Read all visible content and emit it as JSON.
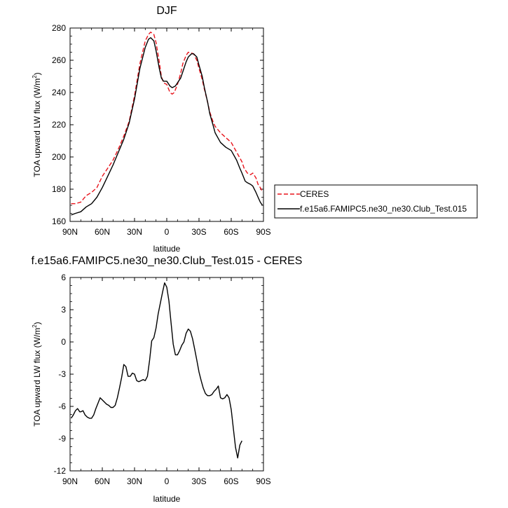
{
  "chart_data": [
    {
      "type": "line",
      "title": "DJF",
      "xlabel": "latitude",
      "ylabel": "TOA upward LW flux (W/m",
      "ylabel_sup": "2",
      "ylabel_tail": ")",
      "xlim": [
        90,
        -90
      ],
      "ylim": [
        160,
        280
      ],
      "x_ticks": [
        90,
        60,
        30,
        0,
        -30,
        -60,
        -90
      ],
      "x_tick_labels": [
        "90N",
        "60N",
        "30N",
        "0",
        "30S",
        "60S",
        "90S"
      ],
      "y_ticks": [
        160,
        180,
        200,
        220,
        240,
        260,
        280
      ],
      "y_tick_labels": [
        "160",
        "180",
        "200",
        "220",
        "240",
        "260",
        "280"
      ],
      "legend_position": "right",
      "series": [
        {
          "name": "CERES",
          "color": "#e8141c",
          "dash": "dashed",
          "x": [
            89,
            85,
            80,
            75,
            70,
            65,
            60,
            55,
            50,
            45,
            40,
            35,
            30,
            25,
            20,
            17,
            15,
            12,
            10,
            7,
            5,
            3,
            0,
            -3,
            -5,
            -7,
            -10,
            -13,
            -15,
            -18,
            -20,
            -23,
            -25,
            -28,
            -30,
            -33,
            -35,
            -38,
            -40,
            -43,
            -45,
            -50,
            -55,
            -60,
            -65,
            -70,
            -72,
            -75,
            -78,
            -80,
            -83,
            -85,
            -88,
            -89
          ],
          "y": [
            171,
            171,
            172,
            176,
            178,
            181,
            188,
            193,
            198,
            205,
            213,
            222,
            238,
            258,
            272,
            276,
            277.5,
            276,
            271,
            259,
            250,
            246,
            245,
            240,
            239,
            240,
            245,
            252,
            258,
            263,
            265,
            264.5,
            264,
            260,
            255,
            248,
            242,
            234,
            228,
            222,
            219,
            215,
            212,
            209,
            203,
            197,
            193,
            190,
            189,
            190,
            187,
            183,
            180,
            178
          ]
        },
        {
          "name": "f.e15a6.FAMIPC5.ne30_ne30.Club_Test.015",
          "color": "#000000",
          "dash": "solid",
          "x": [
            89,
            85,
            80,
            75,
            70,
            65,
            60,
            55,
            50,
            45,
            40,
            35,
            30,
            25,
            20,
            17,
            15,
            12,
            10,
            7,
            5,
            3,
            0,
            -3,
            -5,
            -8,
            -10,
            -13,
            -15,
            -18,
            -20,
            -23,
            -25,
            -28,
            -30,
            -33,
            -35,
            -38,
            -40,
            -43,
            -45,
            -50,
            -55,
            -60,
            -65,
            -68,
            -70,
            -73,
            -75,
            -78,
            -80,
            -83,
            -85,
            -87,
            -89
          ],
          "y": [
            164,
            165,
            166,
            169,
            171,
            175,
            181,
            188,
            195,
            203,
            211,
            221,
            236,
            255,
            268,
            273,
            274,
            272,
            266,
            255,
            249,
            247,
            247,
            244,
            243,
            244,
            246,
            249,
            253,
            259,
            262,
            264,
            264,
            262,
            257,
            250,
            243,
            234,
            227,
            220,
            215,
            209,
            206,
            204,
            198,
            193,
            190,
            185,
            184,
            183,
            182,
            178,
            175,
            172,
            170
          ]
        }
      ]
    },
    {
      "type": "line",
      "title": "f.e15a6.FAMIPC5.ne30_ne30.Club_Test.015 - CERES",
      "xlabel": "latitude",
      "ylabel": "TOA upward LW flux (W/m",
      "ylabel_sup": "2",
      "ylabel_tail": ")",
      "xlim": [
        90,
        -90
      ],
      "ylim": [
        -12,
        6
      ],
      "x_ticks": [
        90,
        60,
        30,
        0,
        -30,
        -60,
        -90
      ],
      "x_tick_labels": [
        "90N",
        "60N",
        "30N",
        "0",
        "30S",
        "60S",
        "90S"
      ],
      "y_ticks": [
        -12,
        -9,
        -6,
        -3,
        0,
        3,
        6
      ],
      "y_tick_labels": [
        "-12",
        "-9",
        "-6",
        "-3",
        "0",
        "3",
        "6"
      ],
      "series": [
        {
          "color": "#000000",
          "dash": "solid",
          "x": [
            89,
            87,
            85,
            83,
            81,
            80,
            78,
            76,
            74,
            72,
            70,
            68,
            66,
            64,
            62,
            60,
            58,
            56,
            54,
            52,
            50,
            48,
            46,
            44,
            42,
            40,
            38,
            36,
            34,
            32,
            30,
            28,
            26,
            24,
            22,
            20,
            18,
            16,
            14,
            12,
            10,
            8,
            6,
            4,
            2,
            0,
            -2,
            -4,
            -6,
            -8,
            -10,
            -12,
            -14,
            -16,
            -18,
            -20,
            -22,
            -24,
            -26,
            -28,
            -30,
            -32,
            -34,
            -36,
            -38,
            -40,
            -42,
            -44,
            -46,
            -48,
            -50,
            -52,
            -54,
            -56,
            -58,
            -60,
            -62,
            -64,
            -66,
            -68,
            -70,
            -72,
            -74,
            -76,
            -78,
            -80,
            -82,
            -84,
            -86,
            -88,
            -89
          ],
          "y": [
            -7.1,
            -6.8,
            -6.4,
            -6.2,
            -6.5,
            -6.5,
            -6.4,
            -6.8,
            -7.0,
            -7.1,
            -7.1,
            -6.8,
            -6.2,
            -5.7,
            -5.2,
            -5.4,
            -5.6,
            -5.8,
            -5.9,
            -6.1,
            -6.1,
            -5.9,
            -5.2,
            -4.3,
            -3.3,
            -2.1,
            -2.3,
            -3.2,
            -3.2,
            -2.9,
            -3.0,
            -3.6,
            -3.7,
            -3.6,
            -3.5,
            -3.6,
            -3.2,
            -1.7,
            0.1,
            0.4,
            1.3,
            2.6,
            3.6,
            4.6,
            5.5,
            5.1,
            3.8,
            1.8,
            -0.2,
            -1.2,
            -1.2,
            -0.8,
            -0.3,
            0.0,
            0.8,
            1.2,
            1.0,
            0.3,
            -0.7,
            -1.7,
            -2.8,
            -3.6,
            -4.3,
            -4.8,
            -5.0,
            -5.0,
            -4.9,
            -4.6,
            -4.4,
            -4.1,
            -5.2,
            -5.3,
            -5.2,
            -4.9,
            -5.2,
            -6.3,
            -8.1,
            -9.8,
            -10.8,
            -9.6,
            -9.2,
            null,
            null,
            null,
            null,
            null,
            null,
            null,
            null,
            null,
            null
          ]
        }
      ]
    }
  ]
}
